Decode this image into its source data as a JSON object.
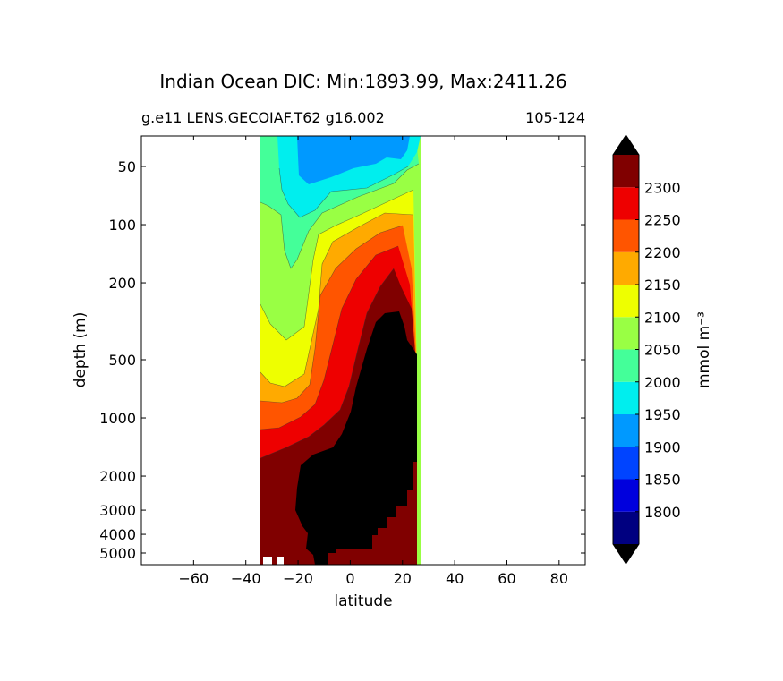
{
  "chart_data": {
    "type": "contourf",
    "title": "Indian Ocean DIC: Min:1893.99, Max:2411.26",
    "subtitle_left": "g.e11 LENS.GECOIAF.T62 g16.002",
    "subtitle_right": "105-124",
    "xlabel": "latitude",
    "ylabel": "depth (m)",
    "xlim": [
      -80,
      90
    ],
    "x_ticks": [
      -60,
      -40,
      -20,
      0,
      20,
      40,
      60,
      80
    ],
    "x_tick_labels": [
      "−60",
      "−40",
      "−20",
      "0",
      "20",
      "40",
      "60",
      "80"
    ],
    "y_ticks": [
      50,
      100,
      200,
      500,
      1000,
      2000,
      3000,
      4000,
      5000
    ],
    "y_tick_labels": [
      "50",
      "100",
      "200",
      "500",
      "1000",
      "2000",
      "3000",
      "4000",
      "5000"
    ],
    "data_extent_latitude": [
      -34,
      26
    ],
    "colorbar": {
      "label": "mmol m⁻³",
      "levels": [
        1750,
        1800,
        1850,
        1900,
        1950,
        2000,
        2050,
        2100,
        2150,
        2200,
        2250,
        2300,
        2350
      ],
      "tick_labels": [
        "1800",
        "1850",
        "1900",
        "1950",
        "2000",
        "2050",
        "2100",
        "2150",
        "2200",
        "2250",
        "2300"
      ],
      "colors": [
        "#000080",
        "#0000dd",
        "#0044ff",
        "#0099ff",
        "#00eeee",
        "#44ff99",
        "#99ff44",
        "#eeff00",
        "#ffaa00",
        "#ff5500",
        "#ee0000",
        "#800000"
      ],
      "under_color": "#000000",
      "over_color": "#000000",
      "extend": "both"
    }
  }
}
